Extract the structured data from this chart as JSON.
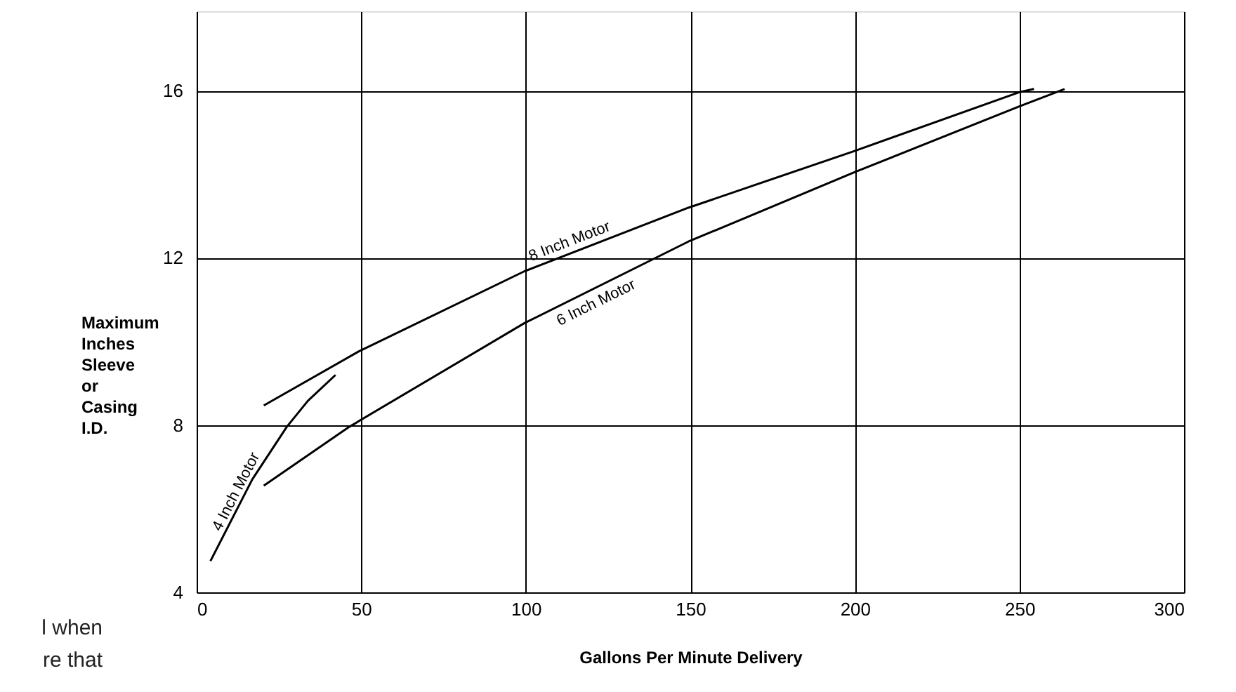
{
  "chart_data": {
    "type": "line",
    "xlabel": "Gallons Per Minute Delivery",
    "ylabel": "Maximum Inches Sleeve or Casing I.D.",
    "xlim": [
      0,
      300
    ],
    "xticks": [
      0,
      50,
      100,
      150,
      200,
      250,
      300
    ],
    "ylim": [
      4,
      17.9
    ],
    "yticks": [
      4,
      8,
      12,
      16
    ],
    "grid": true,
    "marker": "none",
    "line_style": "solid",
    "series": [
      {
        "name": "4 Inch Motor",
        "color": "#000000",
        "x": [
          4.2,
          16.9,
          27.4,
          33.8,
          42.2
        ],
        "values": [
          4.75,
          6.7,
          7.96,
          8.58,
          9.2
        ]
      },
      {
        "name": "8 Inch Motor",
        "color": "#000000",
        "x": [
          20.4,
          49.2,
          99.6,
          149.4,
          199.6,
          249.8,
          254.4
        ],
        "values": [
          8.47,
          9.76,
          11.68,
          13.2,
          14.55,
          15.96,
          16.04
        ]
      },
      {
        "name": "6 Inch Motor",
        "color": "#000000",
        "x": [
          20.4,
          46.4,
          99.6,
          149.4,
          199.6,
          249.8,
          263.7
        ],
        "values": [
          6.55,
          7.96,
          10.44,
          12.39,
          14.04,
          15.62,
          16.04
        ]
      }
    ],
    "annotations": [
      "l when",
      "re that"
    ]
  }
}
